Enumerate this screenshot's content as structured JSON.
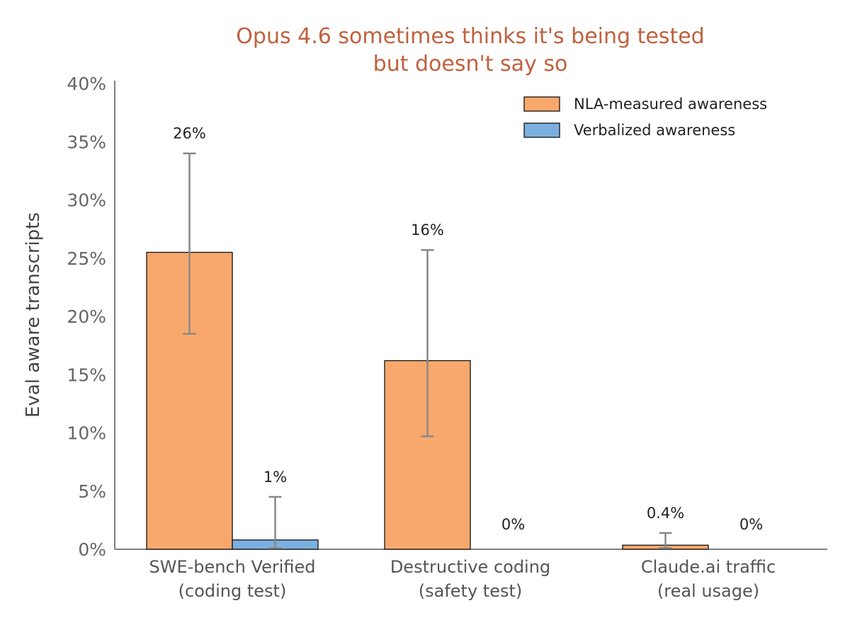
{
  "chart_data": {
    "type": "bar",
    "title_lines": [
      "Opus 4.6 sometimes thinks it's being tested",
      "but doesn't say so"
    ],
    "ylabel": "Eval aware transcripts",
    "xlabel": "",
    "ylim": [
      0,
      40
    ],
    "y_ticks": [
      "0%",
      "5%",
      "10%",
      "15%",
      "20%",
      "25%",
      "30%",
      "35%",
      "40%"
    ],
    "y_tick_values": [
      0,
      5,
      10,
      15,
      20,
      25,
      30,
      35,
      40
    ],
    "categories": [
      [
        "SWE-bench Verified",
        "(coding test)"
      ],
      [
        "Destructive coding",
        "(safety test)"
      ],
      [
        "Claude.ai traffic",
        "(real usage)"
      ]
    ],
    "series": [
      {
        "name": "NLA-measured awareness",
        "color": "#F8A86C",
        "values": [
          25.5,
          16.2,
          0.35
        ],
        "error_low": [
          18.5,
          9.7,
          0.1
        ],
        "error_high": [
          34.0,
          25.7,
          1.4
        ],
        "labels": [
          "26%",
          "16%",
          "0.4%"
        ]
      },
      {
        "name": "Verbalized awareness",
        "color": "#7BAFDF",
        "values": [
          0.8,
          0,
          0
        ],
        "error_low": [
          0.1,
          null,
          null
        ],
        "error_high": [
          4.5,
          null,
          null
        ],
        "labels": [
          "1%",
          "0%",
          "0%"
        ]
      }
    ],
    "legend_position": "top-right",
    "grid": false,
    "colors": {
      "title": "#C0613E",
      "axis": "#555555",
      "error_bar": "#888888",
      "bar_edge": "#111111"
    }
  }
}
